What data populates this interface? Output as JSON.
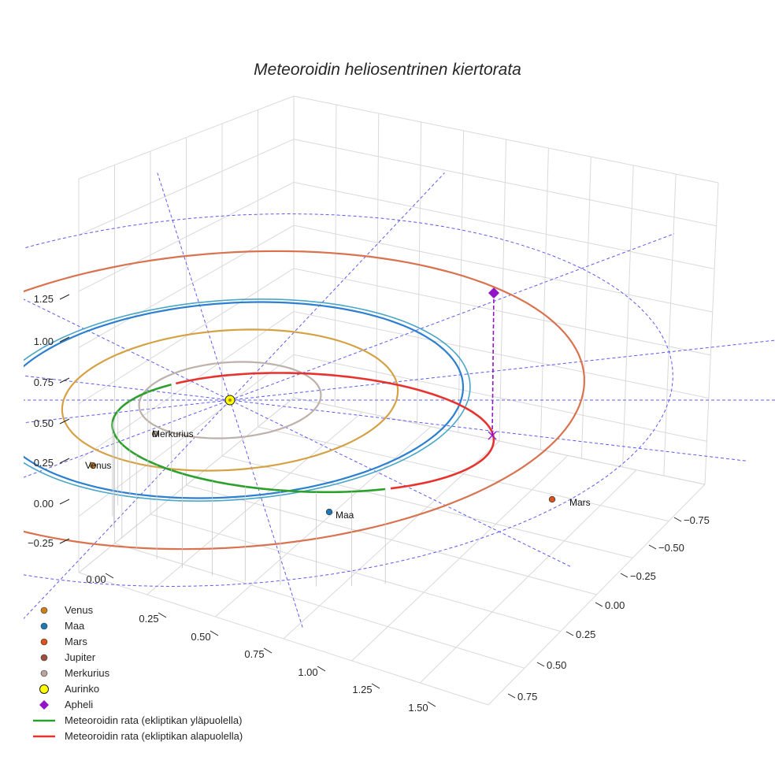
{
  "chart_data": {
    "type": "3d-orbit",
    "title": "Meteoroidin heliosentrinen kiertorata",
    "z_ticks": [
      "1.25",
      "1.00",
      "0.75",
      "0.50",
      "0.25",
      "0.00",
      "−0.25"
    ],
    "x_ticks": [
      "0.00",
      "0.25",
      "0.50",
      "0.75",
      "1.00",
      "1.25",
      "1.50"
    ],
    "y_ticks": [
      "−0.75",
      "−0.50",
      "−0.25",
      "0.00",
      "0.25",
      "0.50",
      "0.75"
    ],
    "planets": [
      {
        "name": "Merkurius",
        "label": "Merkurius",
        "orbit_radius_au": 0.39,
        "color": "#bdb1aa",
        "marker": "#b9a59b"
      },
      {
        "name": "Venus",
        "label": "Venus",
        "orbit_radius_au": 0.72,
        "color": "#d4a244",
        "marker": "#c97f1c"
      },
      {
        "name": "Maa",
        "label": "Maa",
        "orbit_radius_au": 1.0,
        "color": "#2d7fd0",
        "marker": "#1f77b4"
      },
      {
        "name": "Mars",
        "label": "Mars",
        "orbit_radius_au": 1.52,
        "color": "#d9734f",
        "marker": "#d9531e"
      }
    ],
    "meteoroid": {
      "perihelion_au": 0.45,
      "aphelion_au": 1.21,
      "aphelion_height_au": 0.5,
      "color_above": "#2ca02c",
      "color_below": "#e8322e",
      "aphelion_color": "#9414c8"
    },
    "legend": [
      {
        "label": "Venus",
        "kind": "dot",
        "color": "#c97f1c"
      },
      {
        "label": "Maa",
        "kind": "dot",
        "color": "#1f77b4"
      },
      {
        "label": "Mars",
        "kind": "dot",
        "color": "#d9531e"
      },
      {
        "label": "Jupiter",
        "kind": "dot",
        "color": "#9c4f3c"
      },
      {
        "label": "Merkurius",
        "kind": "dot",
        "color": "#b9a59b"
      },
      {
        "label": "Aurinko",
        "kind": "sun",
        "color": "#ffff00"
      },
      {
        "label": "Apheli",
        "kind": "diamond",
        "color": "#9414c8"
      },
      {
        "label": "Meteoroidin rata (ekliptikan yläpuolella)",
        "kind": "line",
        "color": "#2ca02c"
      },
      {
        "label": "Meteoroidin rata (ekliptikan alapuolella)",
        "kind": "line",
        "color": "#e8322e"
      }
    ]
  }
}
